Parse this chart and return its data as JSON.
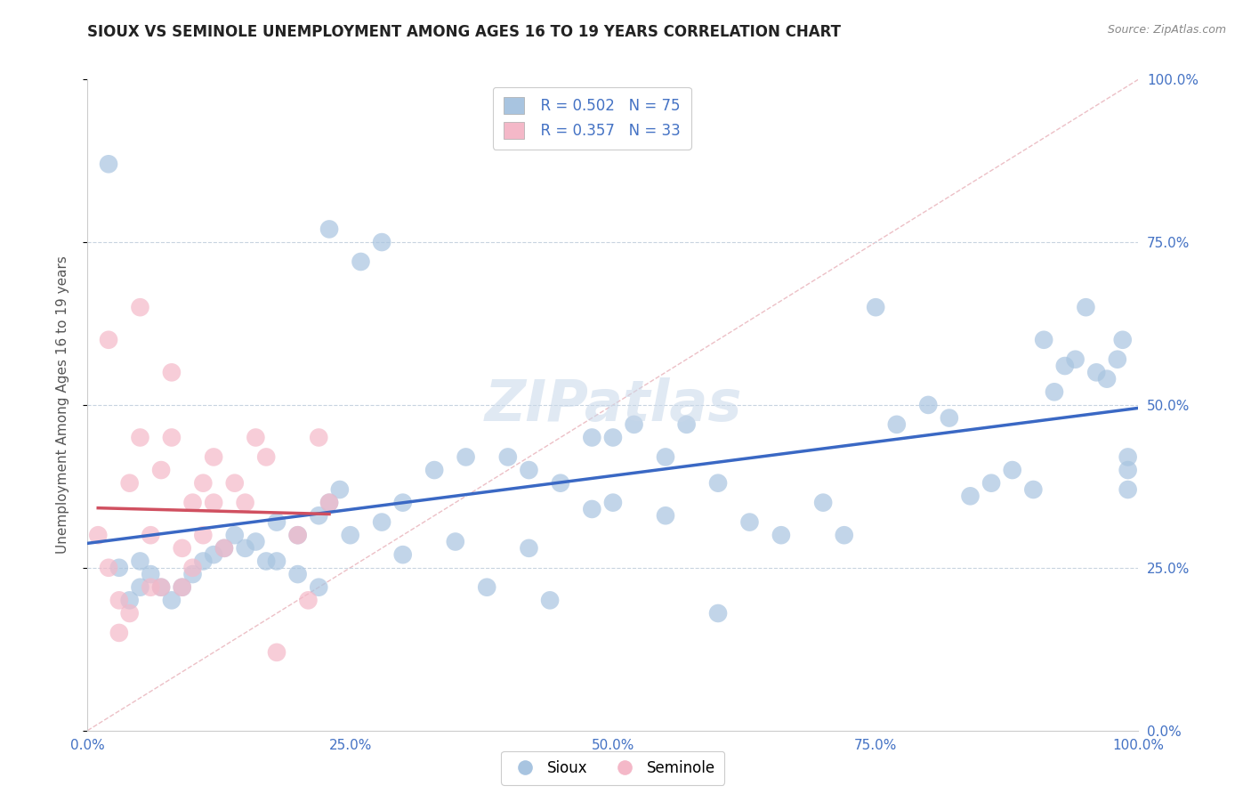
{
  "title": "SIOUX VS SEMINOLE UNEMPLOYMENT AMONG AGES 16 TO 19 YEARS CORRELATION CHART",
  "source": "Source: ZipAtlas.com",
  "ylabel": "Unemployment Among Ages 16 to 19 years",
  "xlim": [
    0.0,
    1.0
  ],
  "ylim": [
    0.0,
    1.0
  ],
  "xticks": [
    0.0,
    0.25,
    0.5,
    0.75,
    1.0
  ],
  "yticks": [
    0.0,
    0.25,
    0.5,
    0.75,
    1.0
  ],
  "xticklabels": [
    "0.0%",
    "25.0%",
    "50.0%",
    "75.0%",
    "100.0%"
  ],
  "yticklabels": [
    "0.0%",
    "25.0%",
    "50.0%",
    "75.0%",
    "100.0%"
  ],
  "sioux_color": "#a8c4e0",
  "seminole_color": "#f4b8c8",
  "sioux_line_color": "#3a68c4",
  "seminole_line_color": "#d05060",
  "diag_line_color": "#e8b0b8",
  "legend_R_sioux": "R = 0.502",
  "legend_N_sioux": "N = 75",
  "legend_R_seminole": "R = 0.357",
  "legend_N_seminole": "N = 33",
  "watermark": "ZIPatlas",
  "sioux_x": [
    0.02,
    0.03,
    0.04,
    0.05,
    0.05,
    0.06,
    0.07,
    0.08,
    0.09,
    0.1,
    0.11,
    0.12,
    0.13,
    0.14,
    0.15,
    0.16,
    0.17,
    0.18,
    0.2,
    0.22,
    0.23,
    0.24,
    0.25,
    0.28,
    0.3,
    0.33,
    0.36,
    0.4,
    0.42,
    0.45,
    0.48,
    0.5,
    0.52,
    0.55,
    0.57,
    0.6,
    0.63,
    0.66,
    0.7,
    0.72,
    0.75,
    0.77,
    0.8,
    0.82,
    0.84,
    0.86,
    0.88,
    0.9,
    0.91,
    0.92,
    0.93,
    0.94,
    0.95,
    0.96,
    0.97,
    0.98,
    0.985,
    0.99,
    0.99,
    0.99,
    0.23,
    0.26,
    0.28,
    0.22,
    0.2,
    0.18,
    0.3,
    0.35,
    0.5,
    0.55,
    0.48,
    0.42,
    0.38,
    0.44,
    0.6
  ],
  "sioux_y": [
    0.87,
    0.25,
    0.2,
    0.22,
    0.26,
    0.24,
    0.22,
    0.2,
    0.22,
    0.24,
    0.26,
    0.27,
    0.28,
    0.3,
    0.28,
    0.29,
    0.26,
    0.32,
    0.3,
    0.33,
    0.35,
    0.37,
    0.3,
    0.32,
    0.35,
    0.4,
    0.42,
    0.42,
    0.4,
    0.38,
    0.45,
    0.45,
    0.47,
    0.42,
    0.47,
    0.38,
    0.32,
    0.3,
    0.35,
    0.3,
    0.65,
    0.47,
    0.5,
    0.48,
    0.36,
    0.38,
    0.4,
    0.37,
    0.6,
    0.52,
    0.56,
    0.57,
    0.65,
    0.55,
    0.54,
    0.57,
    0.6,
    0.37,
    0.4,
    0.42,
    0.77,
    0.72,
    0.75,
    0.22,
    0.24,
    0.26,
    0.27,
    0.29,
    0.35,
    0.33,
    0.34,
    0.28,
    0.22,
    0.2,
    0.18
  ],
  "seminole_x": [
    0.01,
    0.02,
    0.02,
    0.03,
    0.03,
    0.04,
    0.04,
    0.05,
    0.05,
    0.06,
    0.06,
    0.07,
    0.07,
    0.08,
    0.08,
    0.09,
    0.09,
    0.1,
    0.1,
    0.11,
    0.11,
    0.12,
    0.12,
    0.13,
    0.14,
    0.15,
    0.16,
    0.17,
    0.18,
    0.2,
    0.21,
    0.22,
    0.23
  ],
  "seminole_y": [
    0.3,
    0.6,
    0.25,
    0.2,
    0.15,
    0.38,
    0.18,
    0.65,
    0.45,
    0.3,
    0.22,
    0.4,
    0.22,
    0.55,
    0.45,
    0.28,
    0.22,
    0.35,
    0.25,
    0.38,
    0.3,
    0.42,
    0.35,
    0.28,
    0.38,
    0.35,
    0.45,
    0.42,
    0.12,
    0.3,
    0.2,
    0.45,
    0.35
  ]
}
